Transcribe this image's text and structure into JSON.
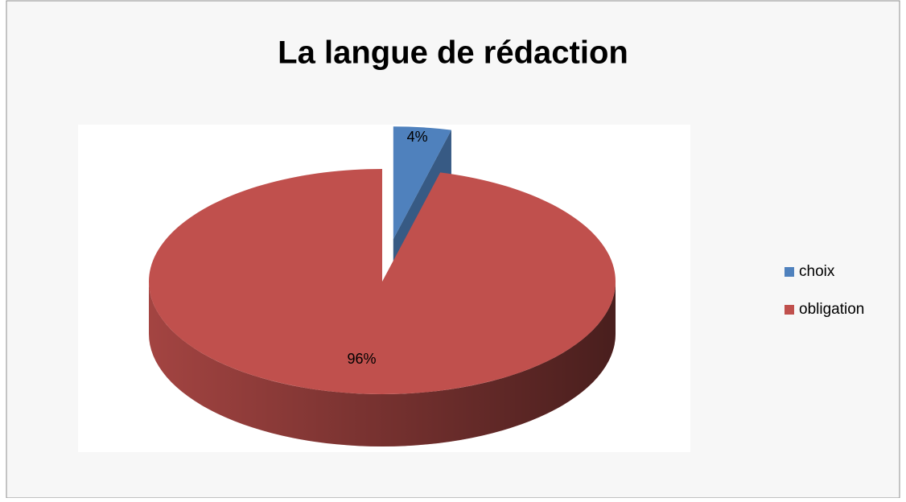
{
  "chart_data": {
    "type": "pie",
    "title": "La langue de rédaction",
    "categories": [
      "choix",
      "obligation"
    ],
    "values": [
      4,
      96
    ],
    "value_labels": [
      "4%",
      "96%"
    ],
    "colors": [
      "#4f81bd",
      "#c0504d"
    ],
    "legend": "right",
    "exploded": [
      true,
      false
    ]
  }
}
